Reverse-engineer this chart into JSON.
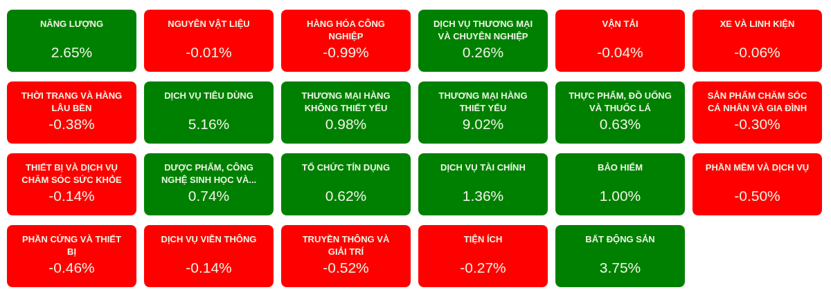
{
  "chart_data": {
    "type": "other",
    "categories": [
      "NĂNG LƯỢNG",
      "NGUYÊN VẬT LIỆU",
      "HÀNG HÓA CÔNG NGHIỆP",
      "DỊCH VỤ THƯƠNG MẠI VÀ CHUYÊN NGHIỆP",
      "VẬN TẢI",
      "XE VÀ LINH KIỆN",
      "THỜI TRANG VÀ HÀNG LÂU BỀN",
      "DỊCH VỤ TIÊU DÙNG",
      "THƯƠNG MẠI HÀNG KHÔNG THIẾT YẾU",
      "THƯƠNG MẠI HÀNG THIẾT YẾU",
      "THỰC PHẨM, ĐỒ UỐNG VÀ THUỐC LÁ",
      "SẢN PHẨM CHĂM SÓC CÁ NHÂN VÀ GIA ĐÌNH",
      "THIẾT BỊ VÀ DỊCH VỤ CHĂM SÓC SỨC KHỎE",
      "DƯỢC PHẨM, CÔNG NGHỆ SINH HỌC VÀ...",
      "TỔ CHỨC TÍN DỤNG",
      "DỊCH VỤ TÀI CHÍNH",
      "BẢO HIỂM",
      "PHẦN MỀM VÀ DỊCH VỤ",
      "PHẦN CỨNG VÀ THIẾT BỊ",
      "DỊCH VỤ VIỄN THÔNG",
      "TRUYỀN THÔNG VÀ GIẢI TRÍ",
      "TIỆN ÍCH",
      "BẤT ĐỘNG SẢN"
    ],
    "values": [
      2.65,
      -0.01,
      -0.99,
      0.26,
      -0.04,
      -0.06,
      -0.38,
      5.16,
      0.98,
      9.02,
      0.63,
      -0.3,
      -0.14,
      0.74,
      0.62,
      1.36,
      1.0,
      -0.5,
      -0.46,
      -0.14,
      -0.52,
      -0.27,
      3.75
    ],
    "value_labels": [
      "2.65%",
      "-0.01%",
      "-0.99%",
      "0.26%",
      "-0.04%",
      "-0.06%",
      "-0.38%",
      "5.16%",
      "0.98%",
      "9.02%",
      "0.63%",
      "-0.30%",
      "-0.14%",
      "0.74%",
      "0.62%",
      "1.36%",
      "1.00%",
      "-0.50%",
      "-0.46%",
      "-0.14%",
      "-0.52%",
      "-0.27%",
      "3.75%"
    ],
    "colors": [
      "#008000",
      "#ff0000",
      "#ff0000",
      "#008000",
      "#ff0000",
      "#ff0000",
      "#ff0000",
      "#008000",
      "#008000",
      "#008000",
      "#008000",
      "#ff0000",
      "#ff0000",
      "#008000",
      "#008000",
      "#008000",
      "#008000",
      "#ff0000",
      "#ff0000",
      "#ff0000",
      "#ff0000",
      "#ff0000",
      "#008000"
    ]
  }
}
